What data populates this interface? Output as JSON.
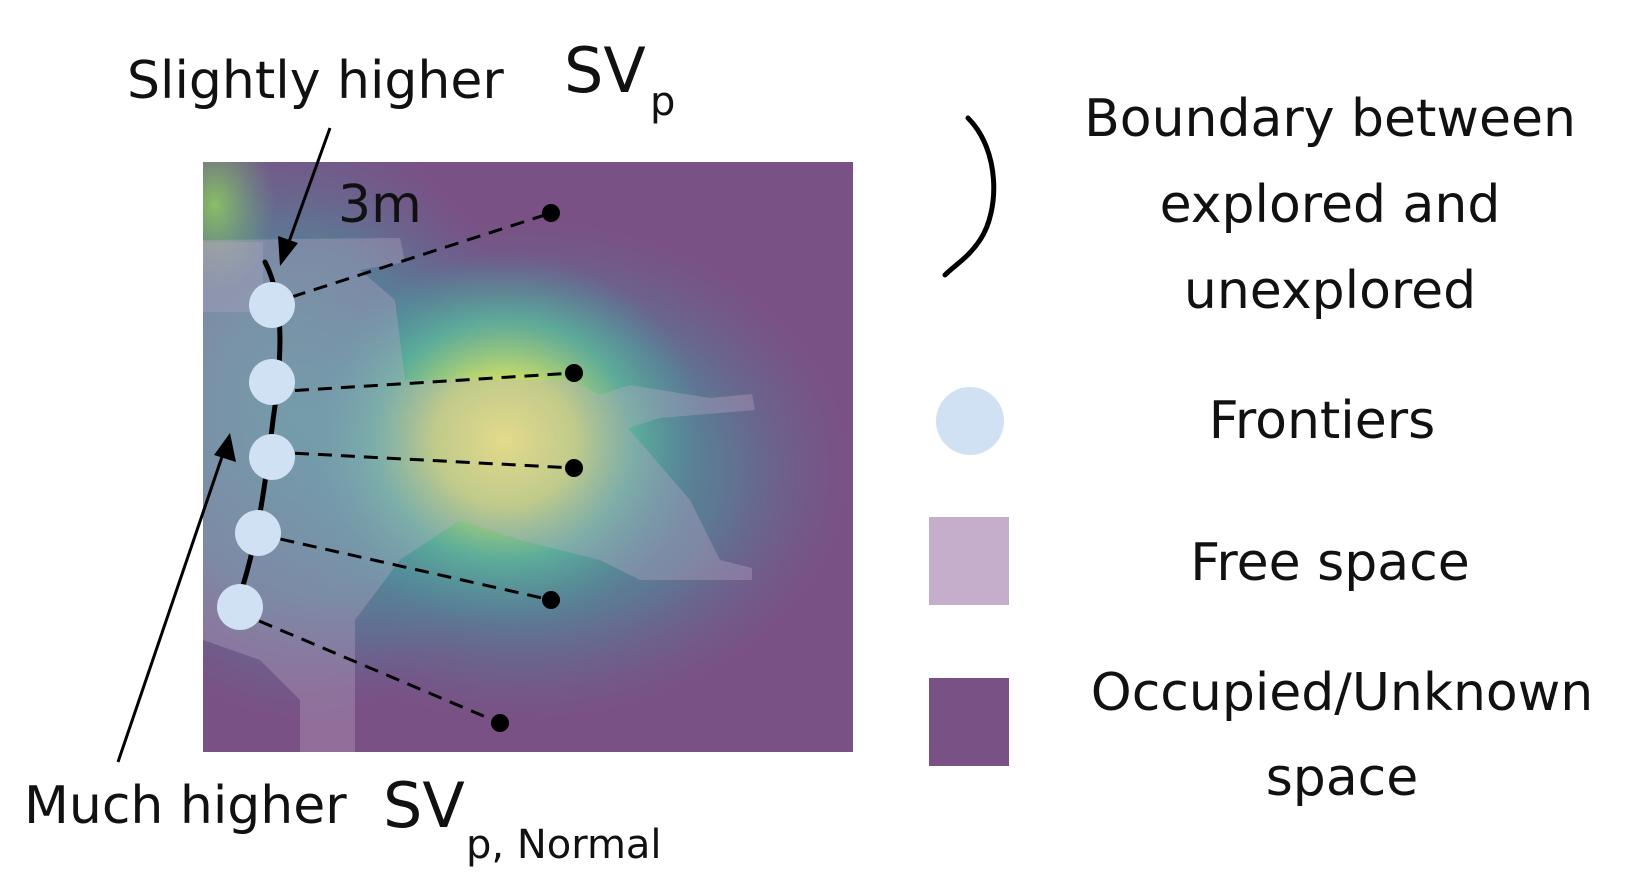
{
  "annotations": {
    "slightly_higher": "Slightly higher",
    "sv_p_top": "SV",
    "sv_p_top_sub": "p",
    "distance": "3m",
    "much_higher": "Much higher",
    "sv_p_bottom": "SV",
    "sv_p_bottom_sub": "p, Normal"
  },
  "legend": {
    "boundary_line1": "Boundary between",
    "boundary_line2": "explored and",
    "boundary_line3": "unexplored",
    "frontiers": "Frontiers",
    "free_space": "Free space",
    "occupied_line1": "Occupied/Unknown",
    "occupied_line2": "space"
  },
  "colors": {
    "occupied": "#7a5185",
    "free_space": "#c4aecb",
    "frontier": "#cfe1f2",
    "heat_teal": "#4fa8a0",
    "heat_yellow": "#eeea6a",
    "boundary": "#000000"
  },
  "frontier_count": 5
}
